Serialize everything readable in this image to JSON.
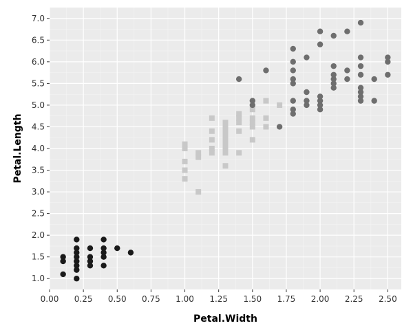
{
  "chart_data": {
    "type": "scatter",
    "xlabel": "Petal.Width",
    "ylabel": "Petal.Length",
    "xlim": [
      0.0,
      2.6
    ],
    "ylim": [
      0.75,
      7.25
    ],
    "x_ticks": [
      "0.00",
      "0.25",
      "0.50",
      "0.75",
      "1.00",
      "1.25",
      "1.50",
      "1.75",
      "2.00",
      "2.25",
      "2.50"
    ],
    "y_ticks": [
      "1.0",
      "1.5",
      "2.0",
      "2.5",
      "3.0",
      "3.5",
      "4.0",
      "4.5",
      "5.0",
      "5.5",
      "6.0",
      "6.5",
      "7.0"
    ],
    "grid": true,
    "legend": "none",
    "background": "#ebebeb",
    "series": [
      {
        "marker": "circle",
        "color": "#1a1a1a",
        "points": [
          [
            0.1,
            1.5
          ],
          [
            0.1,
            1.4
          ],
          [
            0.1,
            1.1
          ],
          [
            0.2,
            1.9
          ],
          [
            0.2,
            1.7
          ],
          [
            0.2,
            1.6
          ],
          [
            0.2,
            1.5
          ],
          [
            0.2,
            1.4
          ],
          [
            0.2,
            1.3
          ],
          [
            0.2,
            1.2
          ],
          [
            0.2,
            1.0
          ],
          [
            0.3,
            1.7
          ],
          [
            0.3,
            1.5
          ],
          [
            0.3,
            1.4
          ],
          [
            0.3,
            1.3
          ],
          [
            0.4,
            1.9
          ],
          [
            0.4,
            1.7
          ],
          [
            0.4,
            1.6
          ],
          [
            0.4,
            1.5
          ],
          [
            0.4,
            1.3
          ],
          [
            0.5,
            1.7
          ],
          [
            0.6,
            1.6
          ]
        ]
      },
      {
        "marker": "square",
        "color": "#c8c8c8",
        "points": [
          [
            1.0,
            4.1
          ],
          [
            1.0,
            4.0
          ],
          [
            1.0,
            3.7
          ],
          [
            1.0,
            3.5
          ],
          [
            1.0,
            3.3
          ],
          [
            1.1,
            3.9
          ],
          [
            1.1,
            3.8
          ],
          [
            1.1,
            3.0
          ],
          [
            1.2,
            4.7
          ],
          [
            1.2,
            4.4
          ],
          [
            1.2,
            4.2
          ],
          [
            1.2,
            4.0
          ],
          [
            1.2,
            3.9
          ],
          [
            1.3,
            4.6
          ],
          [
            1.3,
            4.5
          ],
          [
            1.3,
            4.4
          ],
          [
            1.3,
            4.3
          ],
          [
            1.3,
            4.2
          ],
          [
            1.3,
            4.1
          ],
          [
            1.3,
            4.0
          ],
          [
            1.3,
            3.9
          ],
          [
            1.3,
            3.6
          ],
          [
            1.4,
            4.8
          ],
          [
            1.4,
            4.7
          ],
          [
            1.4,
            4.6
          ],
          [
            1.4,
            4.4
          ],
          [
            1.4,
            3.9
          ],
          [
            1.5,
            4.9
          ],
          [
            1.5,
            4.7
          ],
          [
            1.5,
            4.6
          ],
          [
            1.5,
            4.5
          ],
          [
            1.5,
            4.2
          ],
          [
            1.6,
            5.1
          ],
          [
            1.6,
            4.7
          ],
          [
            1.6,
            4.5
          ],
          [
            1.7,
            5.0
          ]
        ]
      },
      {
        "marker": "circle",
        "color": "#6e6e6e",
        "points": [
          [
            1.4,
            5.6
          ],
          [
            1.5,
            5.1
          ],
          [
            1.5,
            5.0
          ],
          [
            1.6,
            5.8
          ],
          [
            1.7,
            4.5
          ],
          [
            1.8,
            6.3
          ],
          [
            1.8,
            6.0
          ],
          [
            1.8,
            5.8
          ],
          [
            1.8,
            5.6
          ],
          [
            1.8,
            5.5
          ],
          [
            1.8,
            5.1
          ],
          [
            1.8,
            4.9
          ],
          [
            1.8,
            4.8
          ],
          [
            1.9,
            6.1
          ],
          [
            1.9,
            5.3
          ],
          [
            1.9,
            5.1
          ],
          [
            1.9,
            5.0
          ],
          [
            2.0,
            6.7
          ],
          [
            2.0,
            6.4
          ],
          [
            2.0,
            5.2
          ],
          [
            2.0,
            5.1
          ],
          [
            2.0,
            5.0
          ],
          [
            2.0,
            4.9
          ],
          [
            2.1,
            6.6
          ],
          [
            2.1,
            5.9
          ],
          [
            2.1,
            5.7
          ],
          [
            2.1,
            5.6
          ],
          [
            2.1,
            5.5
          ],
          [
            2.1,
            5.4
          ],
          [
            2.2,
            6.7
          ],
          [
            2.2,
            5.8
          ],
          [
            2.2,
            5.6
          ],
          [
            2.3,
            6.9
          ],
          [
            2.3,
            6.1
          ],
          [
            2.3,
            5.9
          ],
          [
            2.3,
            5.7
          ],
          [
            2.3,
            5.4
          ],
          [
            2.3,
            5.3
          ],
          [
            2.3,
            5.2
          ],
          [
            2.3,
            5.1
          ],
          [
            2.4,
            5.6
          ],
          [
            2.4,
            5.1
          ],
          [
            2.5,
            6.1
          ],
          [
            2.5,
            6.0
          ],
          [
            2.5,
            5.7
          ]
        ]
      }
    ]
  }
}
